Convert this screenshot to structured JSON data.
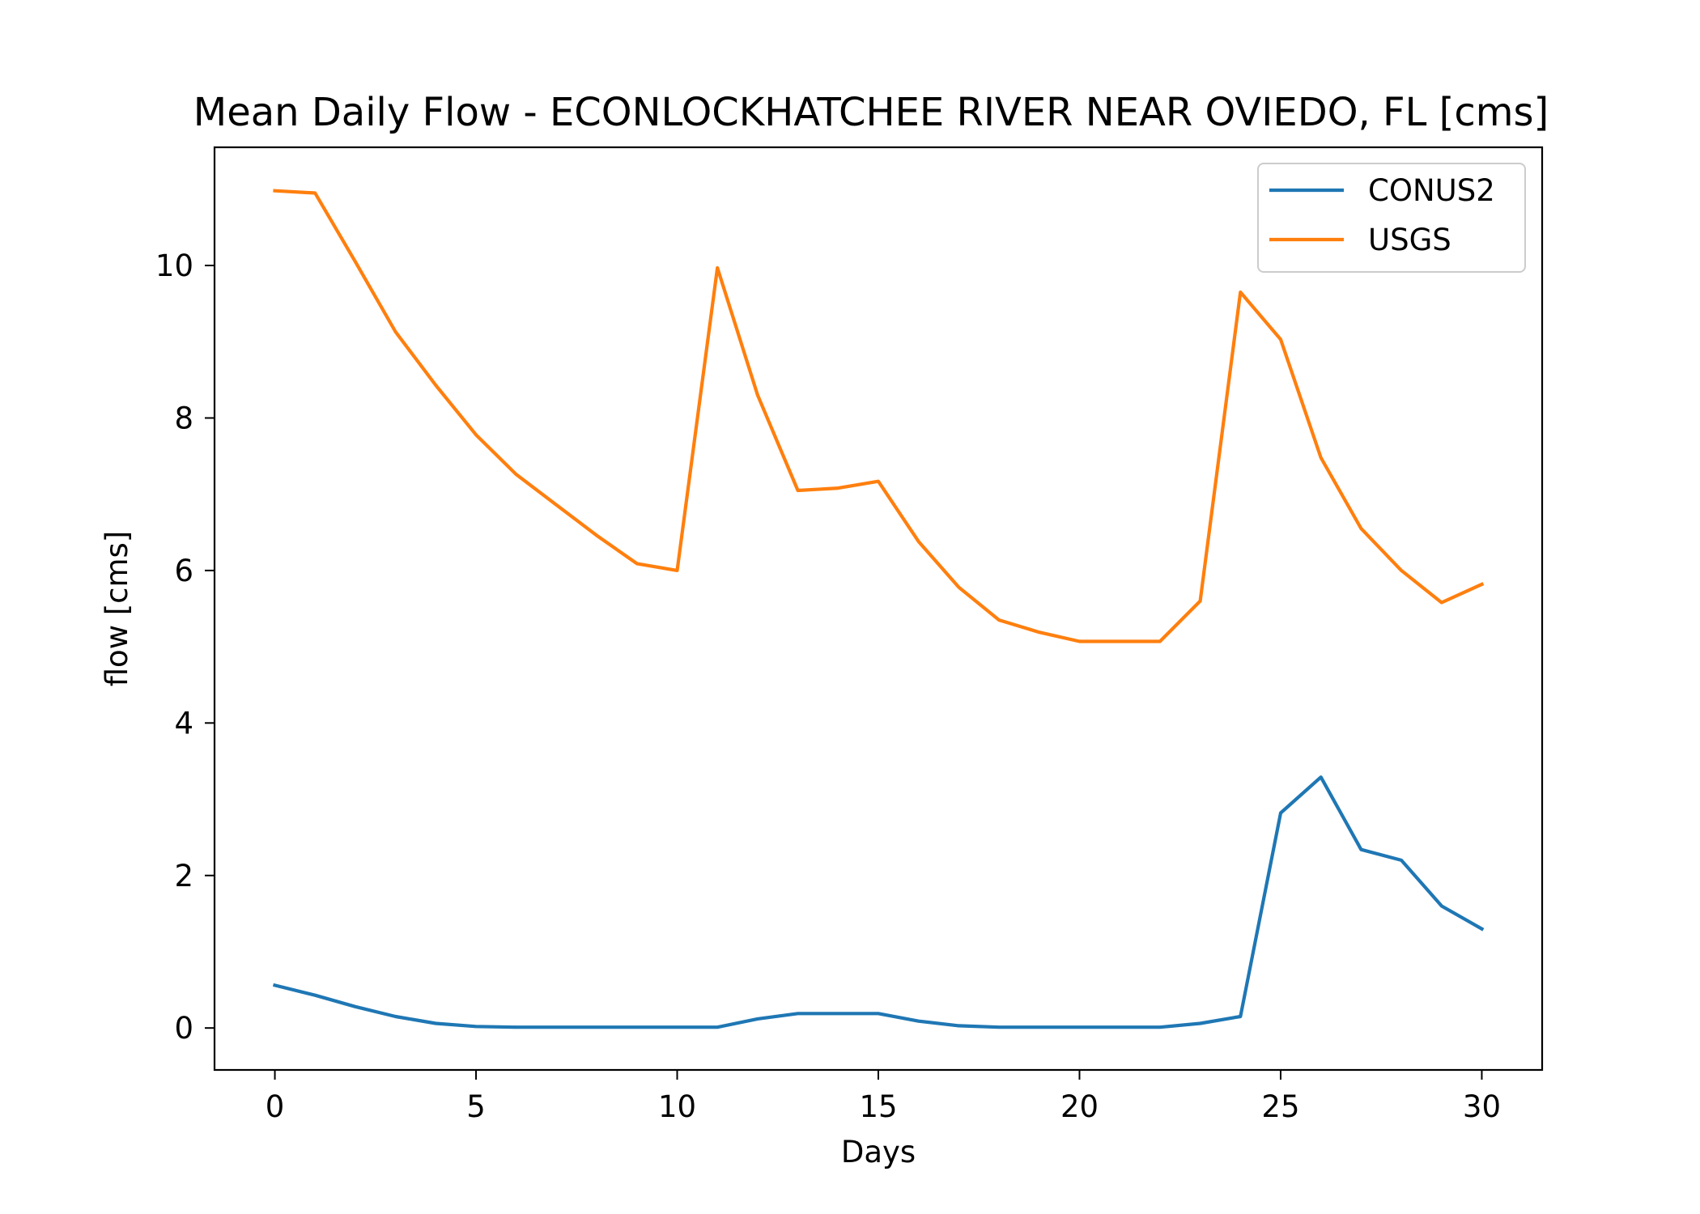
{
  "chart_data": {
    "type": "line",
    "title": "Mean Daily Flow - ECONLOCKHATCHEE RIVER NEAR OVIEDO, FL [cms]",
    "xlabel": "Days",
    "ylabel": "flow [cms]",
    "xlim": [
      -1.5,
      31.5
    ],
    "ylim": [
      -0.55,
      11.55
    ],
    "xticks": [
      0,
      5,
      10,
      15,
      20,
      25,
      30
    ],
    "yticks": [
      0,
      2,
      4,
      6,
      8,
      10
    ],
    "legend_placement": "top-right",
    "grid": false,
    "series": [
      {
        "name": "CONUS2",
        "color": "#1f77b4",
        "x": [
          0,
          1,
          2,
          3,
          4,
          5,
          6,
          7,
          8,
          9,
          10,
          11,
          12,
          13,
          14,
          15,
          16,
          17,
          18,
          19,
          20,
          21,
          22,
          23,
          24,
          25,
          26,
          27,
          28,
          29,
          30
        ],
        "values": [
          0.56,
          0.43,
          0.28,
          0.15,
          0.06,
          0.02,
          0.01,
          0.01,
          0.01,
          0.01,
          0.01,
          0.01,
          0.12,
          0.19,
          0.19,
          0.19,
          0.09,
          0.03,
          0.01,
          0.01,
          0.01,
          0.01,
          0.01,
          0.06,
          0.15,
          2.82,
          3.29,
          2.34,
          2.2,
          1.6,
          1.3
        ]
      },
      {
        "name": "USGS",
        "color": "#ff7f0e",
        "x": [
          0,
          1,
          2,
          3,
          4,
          5,
          6,
          7,
          8,
          9,
          10,
          11,
          12,
          13,
          14,
          15,
          16,
          17,
          18,
          19,
          20,
          21,
          22,
          23,
          24,
          25,
          26,
          27,
          28,
          29,
          30
        ],
        "values": [
          10.98,
          10.95,
          10.05,
          9.13,
          8.43,
          7.78,
          7.26,
          6.86,
          6.46,
          6.09,
          6.0,
          9.97,
          8.3,
          7.05,
          7.08,
          7.17,
          6.38,
          5.78,
          5.35,
          5.19,
          5.07,
          5.07,
          5.07,
          5.6,
          9.65,
          9.03,
          7.48,
          6.55,
          6.0,
          5.58,
          5.82
        ]
      }
    ]
  }
}
